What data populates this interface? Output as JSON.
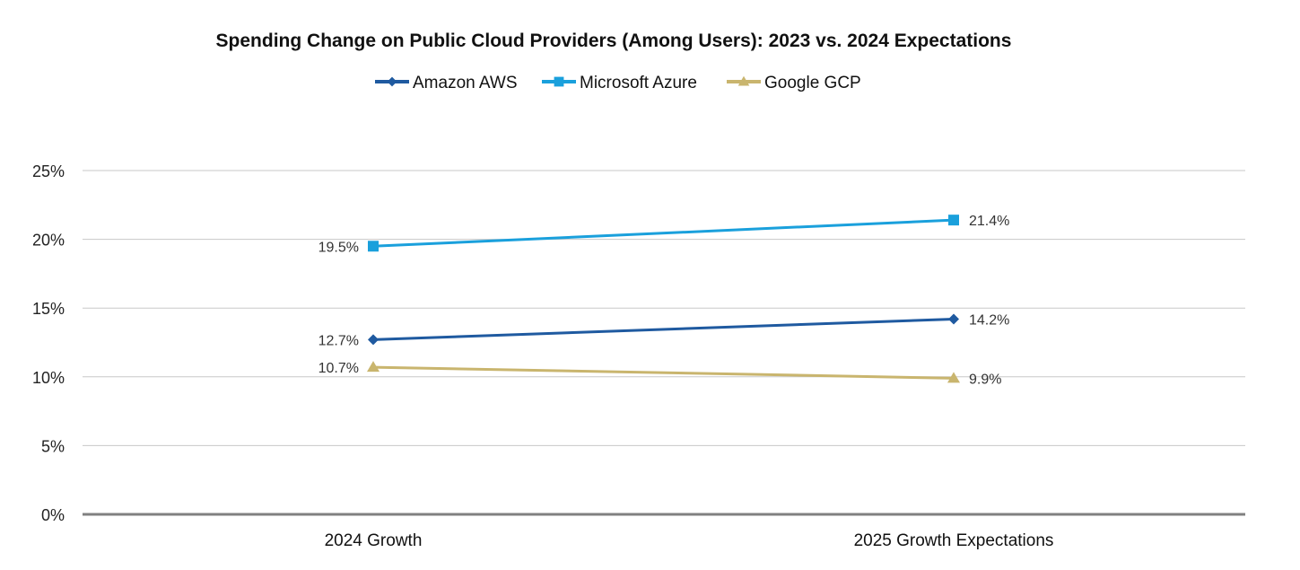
{
  "chart_data": {
    "type": "line",
    "title": "Spending Change on Public Cloud Providers (Among Users): 2023 vs. 2024 Expectations",
    "xlabel": "",
    "ylabel": "",
    "categories": [
      "2024 Growth",
      "2025 Growth Expectations"
    ],
    "ylim": [
      0,
      25
    ],
    "yticks": [
      0,
      5,
      10,
      15,
      20,
      25
    ],
    "ytick_labels": [
      "0%",
      "5%",
      "10%",
      "15%",
      "20%",
      "25%"
    ],
    "grid": true,
    "legend_position": "top-center",
    "series": [
      {
        "name": "Amazon AWS",
        "values": [
          12.7,
          14.2
        ],
        "labels": [
          "12.7%",
          "14.2%"
        ],
        "color": "#1f5aa0",
        "marker": "diamond"
      },
      {
        "name": "Microsoft Azure",
        "values": [
          19.5,
          21.4
        ],
        "labels": [
          "19.5%",
          "21.4%"
        ],
        "color": "#1aa0dc",
        "marker": "square"
      },
      {
        "name": "Google GCP",
        "values": [
          10.7,
          9.9
        ],
        "labels": [
          "10.7%",
          "9.9%"
        ],
        "color": "#c9b56e",
        "marker": "triangle"
      }
    ]
  }
}
